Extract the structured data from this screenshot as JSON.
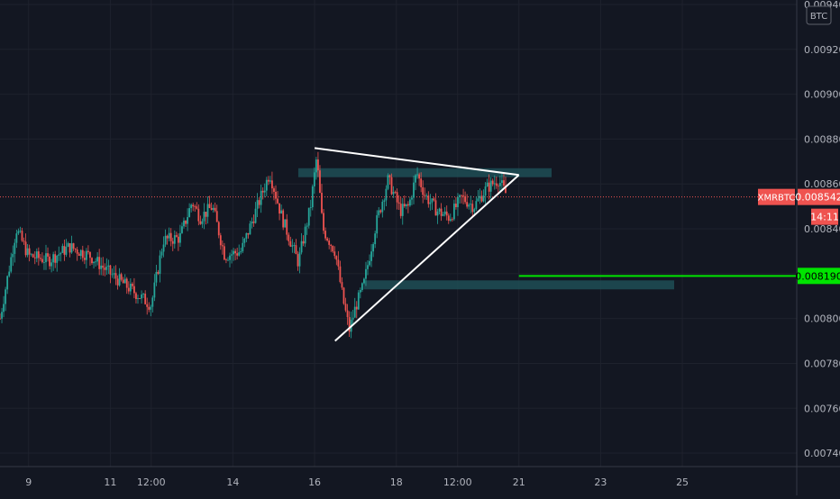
{
  "chart_data": {
    "type": "candlestick",
    "symbol": "XMRBTC",
    "currency_badge": "BTC",
    "y_ticks": [
      "0.007400",
      "0.007600",
      "0.007800",
      "0.008000",
      "0.008200",
      "0.008400",
      "0.008600",
      "0.008800",
      "0.009000",
      "0.009200",
      "0.009400"
    ],
    "ylim": [
      0.00734,
      0.00942
    ],
    "x_ticks": [
      {
        "label": "9",
        "day": 9
      },
      {
        "label": "11",
        "day": 11
      },
      {
        "label": "12:00",
        "day": 12
      },
      {
        "label": "14",
        "day": 14
      },
      {
        "label": "16",
        "day": 16
      },
      {
        "label": "18",
        "day": 18
      },
      {
        "label": "12:00",
        "day": 19.5
      },
      {
        "label": "21",
        "day": 21
      },
      {
        "label": "23",
        "day": 23
      },
      {
        "label": "25",
        "day": 25
      }
    ],
    "xlim": [
      8.3,
      27.8
    ],
    "last_price": {
      "label": "XMRBTC",
      "value": "0.008542",
      "countdown": "14:11"
    },
    "horizontal_level": {
      "value": "0.008190",
      "price": 0.00819,
      "start_day": 21.0,
      "color": "#00e400"
    },
    "zones": [
      {
        "x0": 15.6,
        "x1": 21.8,
        "y0": 0.00863,
        "y1": 0.00867,
        "color": "#1f4e55"
      },
      {
        "x0": 17.2,
        "x1": 24.8,
        "y0": 0.00813,
        "y1": 0.00817,
        "color": "#1f4e55"
      }
    ],
    "triangle": {
      "top_left": {
        "day": 16.0,
        "price": 0.00876
      },
      "apex": {
        "day": 21.0,
        "price": 0.00864
      },
      "bottom_left": {
        "day": 16.5,
        "price": 0.0079
      },
      "color": "#ffffff"
    },
    "anchors": [
      [
        8.3,
        0.008
      ],
      [
        8.7,
        0.0084
      ],
      [
        9.0,
        0.00828
      ],
      [
        9.5,
        0.00826
      ],
      [
        10.0,
        0.00832
      ],
      [
        10.5,
        0.00828
      ],
      [
        11.0,
        0.0082
      ],
      [
        11.5,
        0.00813
      ],
      [
        12.0,
        0.00806
      ],
      [
        12.3,
        0.00835
      ],
      [
        12.7,
        0.00836
      ],
      [
        13.0,
        0.00852
      ],
      [
        13.2,
        0.00845
      ],
      [
        13.5,
        0.0085
      ],
      [
        13.8,
        0.00828
      ],
      [
        14.2,
        0.0083
      ],
      [
        14.5,
        0.00845
      ],
      [
        14.9,
        0.00865
      ],
      [
        15.2,
        0.00845
      ],
      [
        15.6,
        0.00825
      ],
      [
        15.9,
        0.0085
      ],
      [
        16.05,
        0.00872
      ],
      [
        16.2,
        0.0084
      ],
      [
        16.5,
        0.0083
      ],
      [
        16.7,
        0.00808
      ],
      [
        16.85,
        0.00795
      ],
      [
        17.0,
        0.00805
      ],
      [
        17.2,
        0.00815
      ],
      [
        17.5,
        0.00842
      ],
      [
        17.8,
        0.00862
      ],
      [
        18.1,
        0.00848
      ],
      [
        18.3,
        0.0085
      ],
      [
        18.5,
        0.00865
      ],
      [
        18.7,
        0.00855
      ],
      [
        19.0,
        0.00848
      ],
      [
        19.3,
        0.00845
      ],
      [
        19.6,
        0.00854
      ],
      [
        19.9,
        0.0085
      ],
      [
        20.2,
        0.00858
      ],
      [
        20.5,
        0.00862
      ],
      [
        20.7,
        0.00855
      ]
    ]
  }
}
